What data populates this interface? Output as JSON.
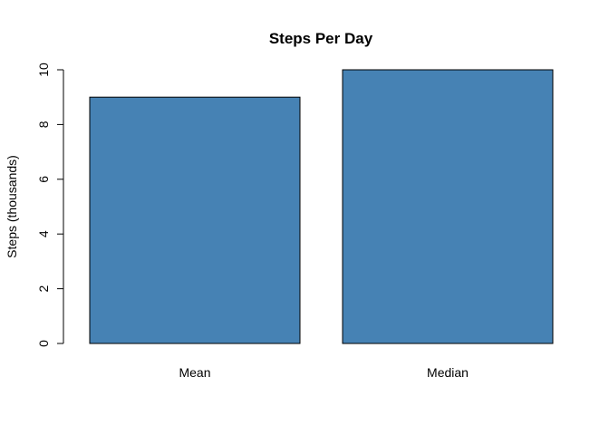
{
  "chart_data": {
    "type": "bar",
    "title": "Steps Per Day",
    "xlabel": "",
    "ylabel": "Steps (thousands)",
    "categories": [
      "Mean",
      "Median"
    ],
    "values": [
      9.0,
      10.0
    ],
    "ylim": [
      0,
      10
    ],
    "yticks": [
      "0",
      "2",
      "4",
      "6",
      "8",
      "10"
    ],
    "bar_color": "#4682B4",
    "grid": false,
    "legend": "none"
  }
}
